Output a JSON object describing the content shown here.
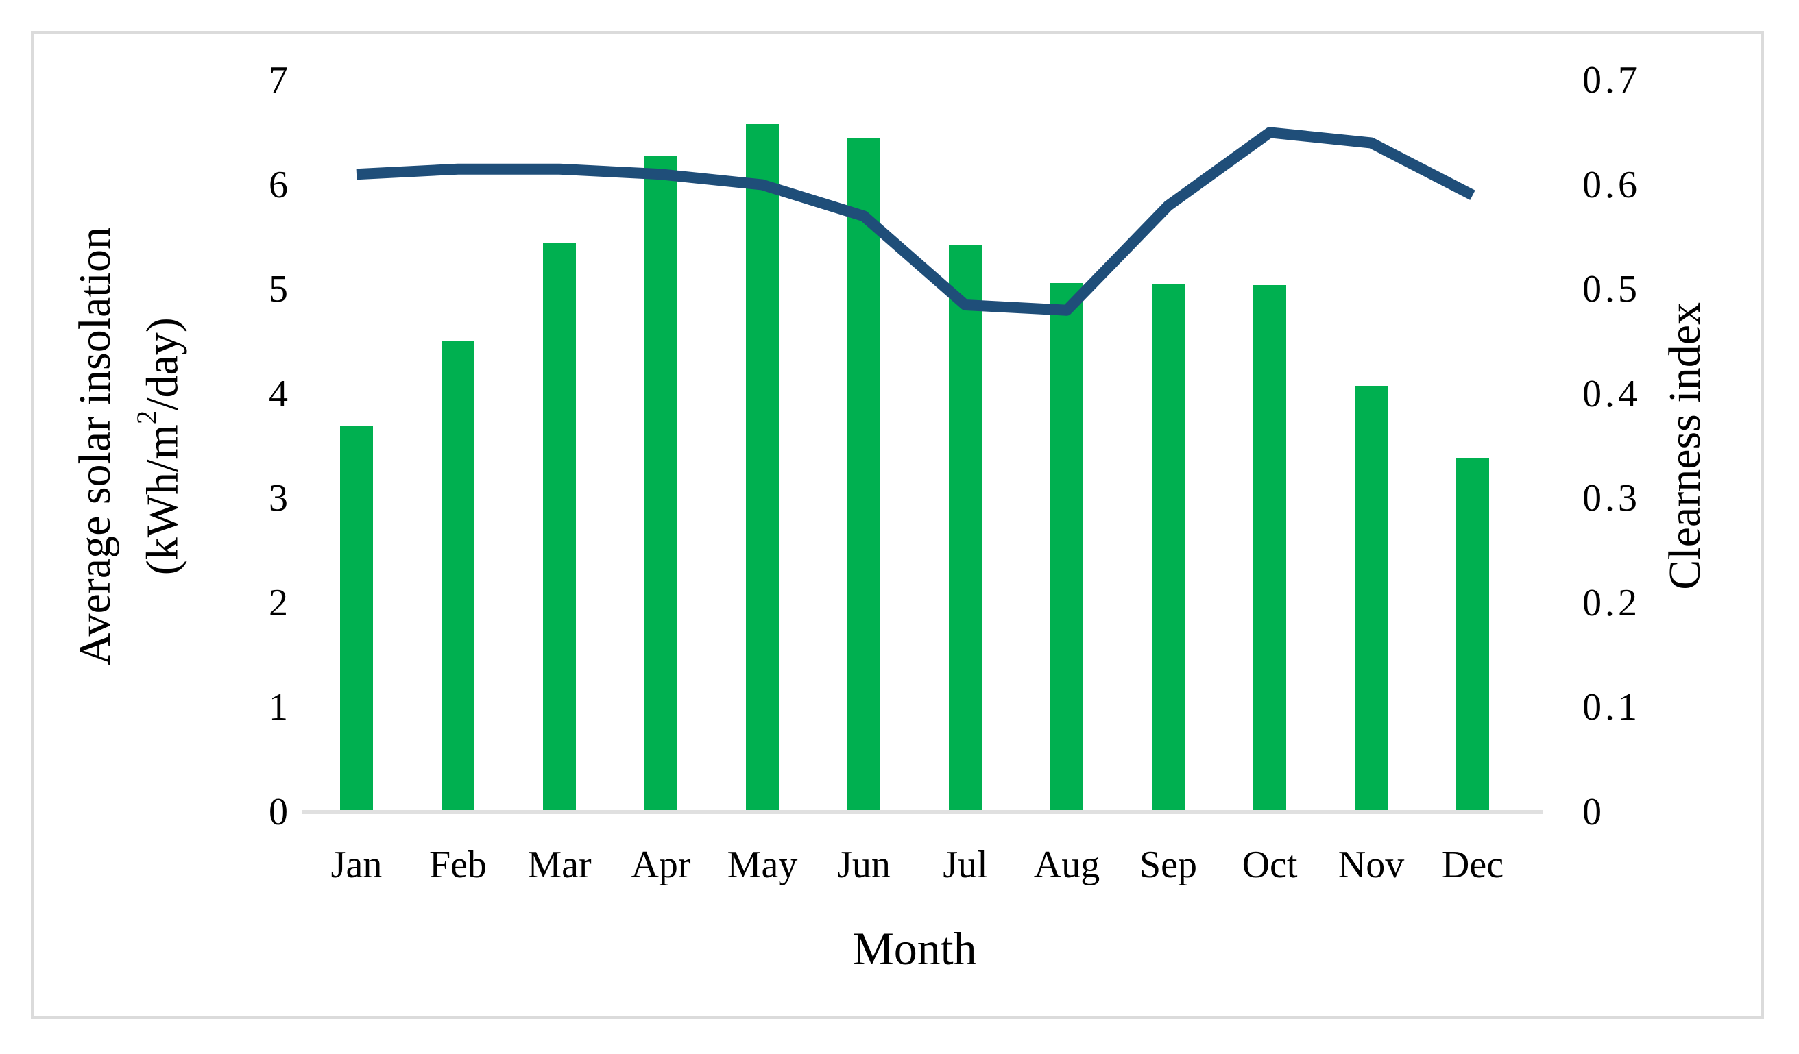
{
  "figure": {
    "background": "#FFFFFF",
    "frame_border_color": "#DBDBDB",
    "axis_line_color": "#E0E0E0"
  },
  "chart_data": {
    "type": "bar",
    "subtype": "combo-bar-and-line-dual-axis",
    "title": "",
    "xlabel": "Month",
    "grid": false,
    "legend_position": "none",
    "categories": [
      "Jan",
      "Feb",
      "Mar",
      "Apr",
      "May",
      "Jun",
      "Jul",
      "Aug",
      "Sep",
      "Oct",
      "Nov",
      "Dec"
    ],
    "series": [
      {
        "name": "Average solar insolation (kWh/m2/day)",
        "chart_type": "bar",
        "axis": "left",
        "color": "#00B050",
        "values": [
          3.7,
          4.5,
          5.45,
          6.28,
          6.58,
          6.45,
          5.43,
          5.06,
          5.05,
          5.04,
          4.08,
          3.38
        ]
      },
      {
        "name": "Clearness index",
        "chart_type": "line",
        "axis": "right",
        "color": "#1F4E79",
        "values": [
          0.61,
          0.615,
          0.615,
          0.61,
          0.6,
          0.57,
          0.485,
          0.48,
          0.58,
          0.65,
          0.64,
          0.59
        ]
      }
    ],
    "left_axis": {
      "label_line1": "Average solar insolation",
      "label_unit_prefix": "(kWh/m",
      "label_unit_sup": "2",
      "label_unit_suffix": "/day)",
      "min": 0,
      "max": 7,
      "tick_labels": [
        "0",
        "1",
        "2",
        "3",
        "4",
        "5",
        "6",
        "7"
      ]
    },
    "right_axis": {
      "label": "Clearness index",
      "min": 0,
      "max": 0.7,
      "tick_labels": [
        "0",
        "0.1",
        "0.2",
        "0.3",
        "0.4",
        "0.5",
        "0.6",
        "0.7"
      ]
    }
  }
}
